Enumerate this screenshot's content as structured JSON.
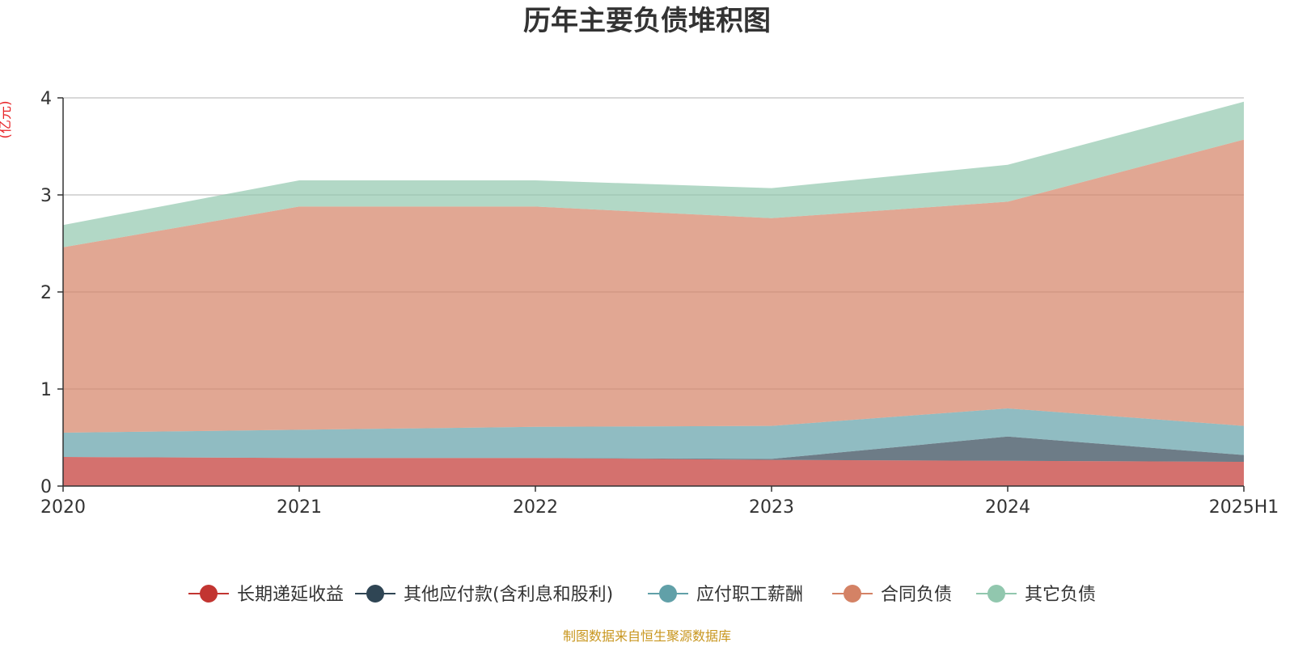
{
  "chart_data": {
    "type": "area",
    "stacked": true,
    "title": "历年主要负债堆积图",
    "unit_label": "(亿元)",
    "categories": [
      "2020",
      "2021",
      "2022",
      "2023",
      "2024",
      "2025H1"
    ],
    "ylim": [
      0,
      4
    ],
    "yticks": [
      0,
      1,
      2,
      3,
      4
    ],
    "grid": true,
    "legend_position": "bottom",
    "series": [
      {
        "name": "长期递延收益",
        "color": "#c23531",
        "values": [
          0.3,
          0.29,
          0.29,
          0.27,
          0.26,
          0.25
        ]
      },
      {
        "name": "其他应付款(含利息和股利)",
        "color": "#2f4554",
        "values": [
          0.0,
          0.0,
          0.0,
          0.01,
          0.25,
          0.07
        ]
      },
      {
        "name": "应付职工薪酬",
        "color": "#61a0a8",
        "values": [
          0.25,
          0.29,
          0.32,
          0.34,
          0.29,
          0.3
        ]
      },
      {
        "name": "合同负债",
        "color": "#d48265",
        "values": [
          1.91,
          2.3,
          2.27,
          2.14,
          2.13,
          2.95
        ]
      },
      {
        "name": "其它负债",
        "color": "#91c7ae",
        "values": [
          0.23,
          0.27,
          0.27,
          0.31,
          0.38,
          0.39
        ]
      }
    ],
    "source_note": "制图数据来自恒生聚源数据库"
  }
}
